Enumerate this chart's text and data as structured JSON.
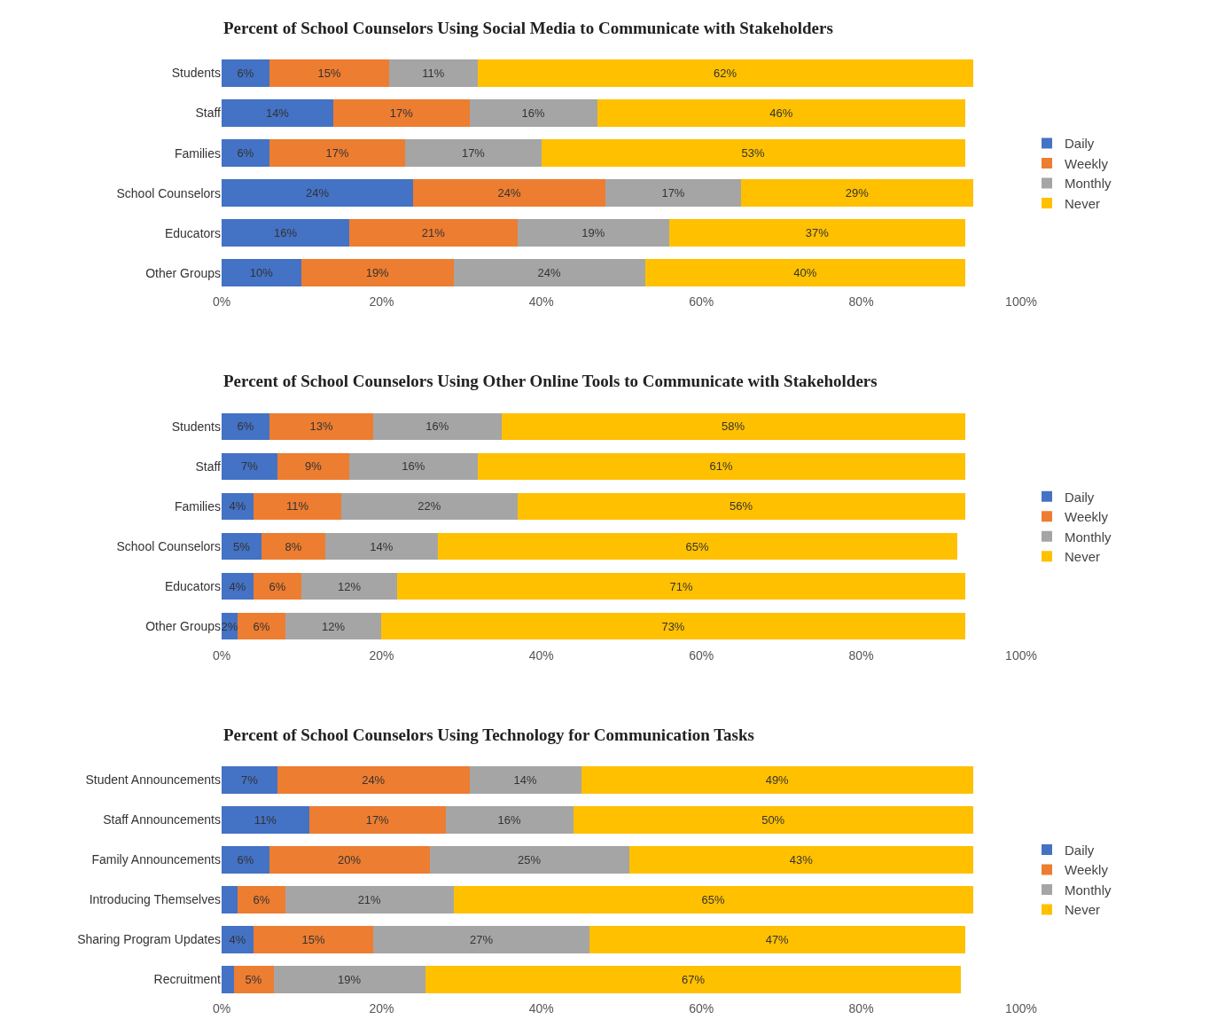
{
  "chart_data": [
    {
      "type": "bar",
      "orientation": "horizontal",
      "stacked": true,
      "title": "Percent of School Counselors Using Social Media to Communicate with Stakeholders",
      "categories": [
        "Students",
        "Staff",
        "Families",
        "School Counselors",
        "Educators",
        "Other Groups"
      ],
      "series": [
        {
          "name": "Daily",
          "color": "#4472c4",
          "values": [
            6,
            14,
            6,
            24,
            16,
            10
          ],
          "value_labels": [
            "6%",
            "14%",
            "6%",
            "24%",
            "16%",
            "10%"
          ]
        },
        {
          "name": "Weekly",
          "color": "#ed7d31",
          "values": [
            15,
            17,
            17,
            24,
            21,
            19
          ],
          "value_labels": [
            "15%",
            "17%",
            "17%",
            "24%",
            "21%",
            "19%"
          ]
        },
        {
          "name": "Monthly",
          "color": "#a5a5a5",
          "values": [
            11,
            16,
            17,
            17,
            19,
            24
          ],
          "value_labels": [
            "11%",
            "16%",
            "17%",
            "17%",
            "19%",
            "24%"
          ]
        },
        {
          "name": "Never",
          "color": "#ffc000",
          "values": [
            62,
            46,
            53,
            29,
            37,
            40
          ],
          "value_labels": [
            "62%",
            "46%",
            "53%",
            "29%",
            "37%",
            "40%"
          ]
        }
      ],
      "xlim": [
        0,
        100
      ],
      "xticks": [
        {
          "value": 0,
          "label": "0%"
        },
        {
          "value": 20,
          "label": "20%"
        },
        {
          "value": 40,
          "label": "40%"
        },
        {
          "value": 60,
          "label": "60%"
        },
        {
          "value": 80,
          "label": "80%"
        },
        {
          "value": 100,
          "label": "100%"
        }
      ],
      "legend": "right"
    },
    {
      "type": "bar",
      "orientation": "horizontal",
      "stacked": true,
      "title": "Percent of School Counselors Using Other Online Tools to Communicate with Stakeholders",
      "categories": [
        "Students",
        "Staff",
        "Families",
        "School Counselors",
        "Educators",
        "Other Groups"
      ],
      "series": [
        {
          "name": "Daily",
          "color": "#4472c4",
          "values": [
            6,
            7,
            4,
            5,
            4,
            2
          ],
          "value_labels": [
            "6%",
            "7%",
            "4%",
            "5%",
            "4%",
            "2%"
          ]
        },
        {
          "name": "Weekly",
          "color": "#ed7d31",
          "values": [
            13,
            9,
            11,
            8,
            6,
            6
          ],
          "value_labels": [
            "13%",
            "9%",
            "11%",
            "8%",
            "6%",
            "6%"
          ]
        },
        {
          "name": "Monthly",
          "color": "#a5a5a5",
          "values": [
            16,
            16,
            22,
            14,
            12,
            12
          ],
          "value_labels": [
            "16%",
            "16%",
            "22%",
            "14%",
            "12%",
            "12%"
          ]
        },
        {
          "name": "Never",
          "color": "#ffc000",
          "values": [
            58,
            61,
            56,
            65,
            71,
            73
          ],
          "value_labels": [
            "58%",
            "61%",
            "56%",
            "65%",
            "71%",
            "73%"
          ]
        }
      ],
      "xlim": [
        0,
        100
      ],
      "xticks": [
        {
          "value": 0,
          "label": "0%"
        },
        {
          "value": 20,
          "label": "20%"
        },
        {
          "value": 40,
          "label": "40%"
        },
        {
          "value": 60,
          "label": "60%"
        },
        {
          "value": 80,
          "label": "80%"
        },
        {
          "value": 100,
          "label": "100%"
        }
      ],
      "legend": "right"
    },
    {
      "type": "bar",
      "orientation": "horizontal",
      "stacked": true,
      "title": "Percent of School Counselors Using Technology for Communication Tasks",
      "categories": [
        "Student Announcements",
        "Staff Announcements",
        "Family Announcements",
        "Introducing Themselves",
        "Sharing Program Updates",
        "Recruitment"
      ],
      "series": [
        {
          "name": "Daily",
          "color": "#4472c4",
          "values": [
            7,
            11,
            6,
            2,
            4,
            1.5
          ],
          "value_labels": [
            "7%",
            "11%",
            "6%",
            null,
            "4%",
            null
          ]
        },
        {
          "name": "Weekly",
          "color": "#ed7d31",
          "values": [
            24,
            17,
            20,
            6,
            15,
            5
          ],
          "value_labels": [
            "24%",
            "17%",
            "20%",
            "6%",
            "15%",
            "5%"
          ]
        },
        {
          "name": "Monthly",
          "color": "#a5a5a5",
          "values": [
            14,
            16,
            25,
            21,
            27,
            19
          ],
          "value_labels": [
            "14%",
            "16%",
            "25%",
            "21%",
            "27%",
            "19%"
          ]
        },
        {
          "name": "Never",
          "color": "#ffc000",
          "values": [
            49,
            50,
            43,
            65,
            47,
            67
          ],
          "value_labels": [
            "49%",
            "50%",
            "43%",
            "65%",
            "47%",
            "67%"
          ]
        }
      ],
      "xlim": [
        0,
        100
      ],
      "xticks": [
        {
          "value": 0,
          "label": "0%"
        },
        {
          "value": 20,
          "label": "20%"
        },
        {
          "value": 40,
          "label": "40%"
        },
        {
          "value": 60,
          "label": "60%"
        },
        {
          "value": 80,
          "label": "80%"
        },
        {
          "value": 100,
          "label": "100%"
        }
      ],
      "legend": "right"
    }
  ]
}
